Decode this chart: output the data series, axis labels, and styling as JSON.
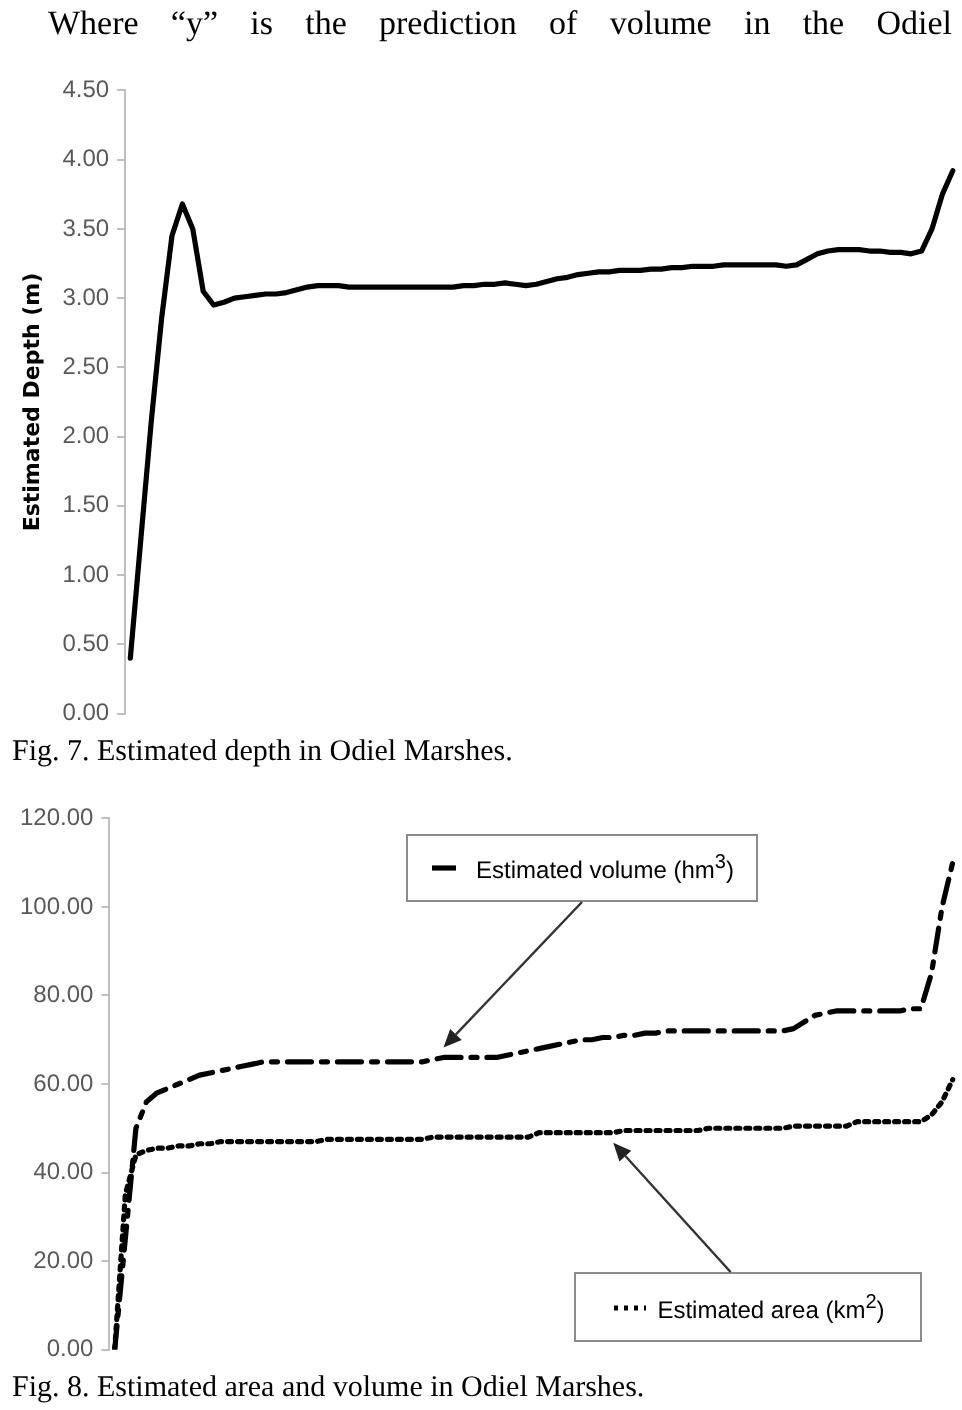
{
  "chart_data": [
    {
      "type": "line",
      "ylabel": "Estimated Depth (m)",
      "annotations": [
        "Where “y” is the prediction of volume in the Odiel",
        "Fig. 7.  Estimated depth in Odiel Marshes."
      ],
      "categories": [
        null,
        null,
        null,
        null,
        null,
        null,
        null,
        null,
        null,
        null,
        null,
        null,
        null,
        null,
        null,
        null,
        null,
        null,
        null,
        null,
        null,
        null,
        null,
        null,
        null,
        null,
        null,
        null,
        null,
        null,
        null,
        null,
        null,
        null,
        null,
        null,
        null,
        null,
        null,
        null,
        null,
        null,
        null,
        null,
        null,
        null,
        null,
        null,
        null,
        null,
        null,
        null,
        null,
        null,
        null,
        null,
        null,
        null,
        null,
        null,
        null,
        null,
        null,
        null,
        null,
        null,
        null,
        null,
        null,
        null,
        null,
        null,
        null,
        null,
        null,
        null,
        null,
        null,
        null,
        null
      ],
      "series": [
        {
          "color": "#000000",
          "line_style": "solid",
          "values": [
            0.4,
            1.25,
            2.1,
            2.85,
            3.45,
            3.68,
            3.5,
            3.05,
            2.95,
            2.97,
            3.0,
            3.01,
            3.02,
            3.03,
            3.03,
            3.04,
            3.06,
            3.08,
            3.09,
            3.09,
            3.09,
            3.08,
            3.08,
            3.08,
            3.08,
            3.08,
            3.08,
            3.08,
            3.08,
            3.08,
            3.08,
            3.08,
            3.09,
            3.09,
            3.1,
            3.1,
            3.11,
            3.1,
            3.09,
            3.1,
            3.12,
            3.14,
            3.15,
            3.17,
            3.18,
            3.19,
            3.19,
            3.2,
            3.2,
            3.2,
            3.21,
            3.21,
            3.22,
            3.22,
            3.23,
            3.23,
            3.23,
            3.24,
            3.24,
            3.24,
            3.24,
            3.24,
            3.24,
            3.23,
            3.24,
            3.28,
            3.32,
            3.34,
            3.35,
            3.35,
            3.35,
            3.34,
            3.34,
            3.33,
            3.33,
            3.32,
            3.34,
            3.5,
            3.75,
            3.92
          ]
        }
      ],
      "ylim": [
        0,
        4.5
      ],
      "yticks": [
        {
          "value": 0,
          "label": "0.00"
        },
        {
          "value": 0.5,
          "label": "0.50"
        },
        {
          "value": 1,
          "label": "1.00"
        },
        {
          "value": 1.5,
          "label": "1.50"
        },
        {
          "value": 2,
          "label": "2.00"
        },
        {
          "value": 2.5,
          "label": "2.50"
        },
        {
          "value": 3,
          "label": "3.00"
        },
        {
          "value": 3.5,
          "label": "3.50"
        },
        {
          "value": 4,
          "label": "4.00"
        },
        {
          "value": 4.5,
          "label": "4.50"
        }
      ]
    },
    {
      "type": "line",
      "annotations": [
        "Fig. 8.  Estimated area and volume in Odiel Marshes."
      ],
      "legend": "bottom right",
      "categories": [
        null,
        null,
        null,
        null,
        null,
        null,
        null,
        null,
        null,
        null,
        null,
        null,
        null,
        null,
        null,
        null,
        null,
        null,
        null,
        null,
        null,
        null,
        null,
        null,
        null,
        null,
        null,
        null,
        null,
        null,
        null,
        null,
        null,
        null,
        null,
        null,
        null,
        null,
        null,
        null,
        null,
        null,
        null,
        null,
        null,
        null,
        null,
        null,
        null,
        null,
        null,
        null,
        null,
        null,
        null,
        null,
        null,
        null,
        null,
        null,
        null,
        null,
        null,
        null,
        null,
        null,
        null,
        null,
        null,
        null,
        null,
        null,
        null,
        null,
        null,
        null,
        null,
        null,
        null,
        null
      ],
      "series": [
        {
          "name": "Estimated volume (hm$^{3}$)",
          "color": "#000000",
          "line_style": "dashed",
          "values": [
            0,
            25,
            50,
            56,
            58,
            59,
            60,
            61,
            62,
            62.5,
            63,
            63.5,
            64,
            64.5,
            65,
            65,
            65,
            65,
            65,
            65,
            65,
            65,
            65,
            65,
            65,
            65,
            65,
            65,
            65,
            65,
            65.5,
            66,
            66,
            66,
            66,
            66,
            66,
            66.5,
            67,
            67.5,
            68,
            68.5,
            69,
            69.5,
            70,
            70,
            70.5,
            70.5,
            71,
            71,
            71.5,
            71.5,
            72,
            72,
            72,
            72,
            72,
            72,
            72,
            72,
            72,
            72,
            72,
            72,
            72.5,
            74,
            75.5,
            76,
            76.5,
            76.5,
            76.5,
            76.5,
            76.5,
            76.5,
            76.5,
            77,
            77,
            85,
            100,
            110
          ]
        },
        {
          "name": "Estimated area (km$^{2}$)",
          "color": "#000000",
          "line_style": "dotted",
          "values": [
            0,
            35,
            44,
            45,
            45.5,
            45.5,
            46,
            46,
            46.5,
            46.5,
            47,
            47,
            47,
            47,
            47,
            47,
            47,
            47,
            47,
            47,
            47.5,
            47.5,
            47.5,
            47.5,
            47.5,
            47.5,
            47.5,
            47.5,
            47.5,
            47.5,
            48,
            48,
            48,
            48,
            48,
            48,
            48,
            48,
            48,
            48,
            49,
            49,
            49,
            49,
            49,
            49,
            49,
            49,
            49.5,
            49.5,
            49.5,
            49.5,
            49.5,
            49.5,
            49.5,
            49.5,
            50,
            50,
            50,
            50,
            50,
            50,
            50,
            50,
            50.5,
            50.5,
            50.5,
            50.5,
            50.5,
            50.5,
            51.5,
            51.5,
            51.5,
            51.5,
            51.5,
            51.5,
            51.5,
            53,
            56,
            61
          ]
        }
      ],
      "ylim": [
        0,
        120
      ],
      "yticks": [
        {
          "value": 0,
          "label": "0.00"
        },
        {
          "value": 20,
          "label": "20.00"
        },
        {
          "value": 40,
          "label": "40.00"
        },
        {
          "value": 60,
          "label": "60.00"
        },
        {
          "value": 80,
          "label": "80.00"
        },
        {
          "value": 100,
          "label": "100.00"
        },
        {
          "value": 120,
          "label": "120.00"
        }
      ]
    }
  ]
}
